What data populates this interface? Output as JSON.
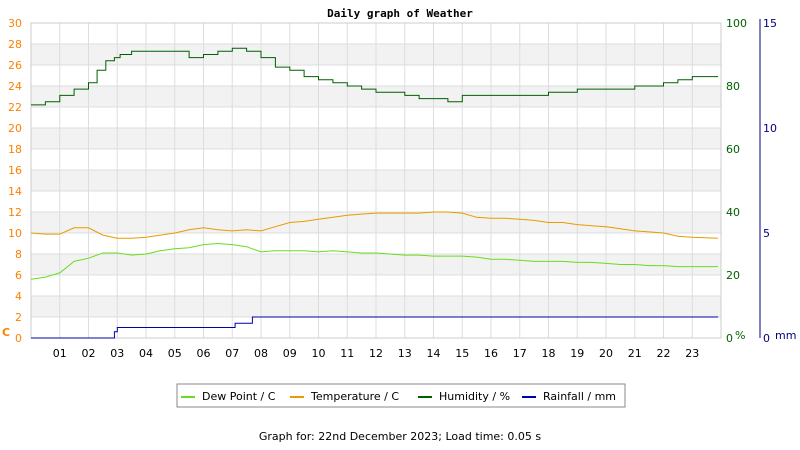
{
  "chart_data": {
    "type": "line",
    "title": "Daily graph of Weather",
    "footer": "Graph for: 22nd December 2023; Load time: 0.05 s",
    "x_ticks": [
      "01",
      "02",
      "03",
      "04",
      "05",
      "06",
      "07",
      "08",
      "09",
      "10",
      "11",
      "12",
      "13",
      "14",
      "15",
      "16",
      "17",
      "18",
      "19",
      "20",
      "21",
      "22",
      "23"
    ],
    "xlim": [
      0,
      24
    ],
    "axes": {
      "temperature": {
        "unit_label": "C",
        "ylim": [
          0,
          30
        ],
        "ticks": [
          0,
          2,
          4,
          6,
          8,
          10,
          12,
          14,
          16,
          18,
          20,
          22,
          24,
          26,
          28,
          30
        ],
        "color": "#ff8000",
        "side": "left"
      },
      "humidity": {
        "unit_label": "%",
        "ylim": [
          0,
          100
        ],
        "ticks": [
          0,
          20,
          40,
          60,
          80,
          100
        ],
        "color": "#006000",
        "side": "right"
      },
      "rainfall": {
        "unit_label": "mm",
        "ylim": [
          0,
          15
        ],
        "ticks": [
          0,
          5,
          10,
          15
        ],
        "color": "#000080",
        "side": "far-right"
      }
    },
    "legend_placement": "bottom",
    "series": [
      {
        "name": "Dew Point / C",
        "axis": "temperature",
        "color": "#66dd22",
        "x": [
          0,
          0.5,
          1,
          1.5,
          2,
          2.5,
          3,
          3.5,
          4,
          4.5,
          5,
          5.5,
          6,
          6.5,
          7,
          7.5,
          8,
          8.5,
          9,
          9.5,
          10,
          10.5,
          11,
          11.5,
          12,
          12.5,
          13,
          13.5,
          14,
          14.5,
          15,
          15.5,
          16,
          16.5,
          17,
          17.5,
          18,
          18.5,
          19,
          19.5,
          20,
          20.5,
          21,
          21.5,
          22,
          22.5,
          23,
          23.9
        ],
        "y": [
          5.6,
          5.8,
          6.2,
          7.3,
          7.6,
          8.1,
          8.1,
          7.9,
          8.0,
          8.3,
          8.5,
          8.6,
          8.9,
          9.0,
          8.9,
          8.7,
          8.2,
          8.3,
          8.3,
          8.3,
          8.2,
          8.3,
          8.2,
          8.1,
          8.1,
          8.0,
          7.9,
          7.9,
          7.8,
          7.8,
          7.8,
          7.7,
          7.5,
          7.5,
          7.4,
          7.3,
          7.3,
          7.3,
          7.2,
          7.2,
          7.1,
          7.0,
          7.0,
          6.9,
          6.9,
          6.8,
          6.8,
          6.8
        ]
      },
      {
        "name": "Temperature / C",
        "axis": "temperature",
        "color": "#e89a00",
        "x": [
          0,
          0.5,
          1,
          1.5,
          2,
          2.5,
          3,
          3.5,
          4,
          4.5,
          5,
          5.5,
          6,
          6.5,
          7,
          7.5,
          8,
          8.5,
          9,
          9.5,
          10,
          10.5,
          11,
          11.5,
          12,
          12.5,
          13,
          13.5,
          14,
          14.5,
          15,
          15.5,
          16,
          16.5,
          17,
          17.5,
          18,
          18.5,
          19,
          19.5,
          20,
          20.5,
          21,
          21.5,
          22,
          22.5,
          23,
          23.9
        ],
        "y": [
          10.0,
          9.9,
          9.9,
          10.5,
          10.5,
          9.8,
          9.5,
          9.5,
          9.6,
          9.8,
          10.0,
          10.3,
          10.5,
          10.3,
          10.2,
          10.3,
          10.2,
          10.6,
          11.0,
          11.1,
          11.3,
          11.5,
          11.7,
          11.8,
          11.9,
          11.9,
          11.9,
          11.9,
          12.0,
          12.0,
          11.9,
          11.5,
          11.4,
          11.4,
          11.3,
          11.2,
          11.0,
          11.0,
          10.8,
          10.7,
          10.6,
          10.4,
          10.2,
          10.1,
          10.0,
          9.7,
          9.6,
          9.5
        ]
      },
      {
        "name": "Humidity / %",
        "axis": "humidity",
        "color": "#006000",
        "x": [
          0,
          0.5,
          1,
          1.5,
          2,
          2.3,
          2.6,
          2.9,
          3.1,
          3.5,
          4,
          4.5,
          5,
          5.5,
          6,
          6.5,
          7,
          7.5,
          8,
          8.5,
          9,
          9.5,
          10,
          10.5,
          11,
          11.5,
          12,
          12.5,
          13,
          13.5,
          14,
          14.5,
          15,
          15.5,
          16,
          16.5,
          17,
          17.5,
          18,
          18.5,
          19,
          19.5,
          20,
          20.5,
          21,
          21.5,
          22,
          22.5,
          23,
          23.9
        ],
        "y": [
          74,
          75,
          77,
          79,
          81,
          85,
          88,
          89,
          90,
          91,
          91,
          91,
          91,
          89,
          90,
          91,
          92,
          91,
          89,
          86,
          85,
          83,
          82,
          81,
          80,
          79,
          78,
          78,
          77,
          76,
          76,
          75,
          77,
          77,
          77,
          77,
          77,
          77,
          78,
          78,
          79,
          79,
          79,
          79,
          80,
          80,
          81,
          82,
          83,
          83
        ]
      },
      {
        "name": "Rainfall / mm",
        "axis": "rainfall",
        "color": "#0000aa",
        "x": [
          0,
          1,
          2,
          2.8,
          2.9,
          3.0,
          3.5,
          4,
          5,
          6,
          7,
          7.1,
          7.6,
          7.7,
          8,
          9,
          10,
          12,
          14,
          16,
          18,
          20,
          22,
          23.9
        ],
        "y": [
          0,
          0,
          0,
          0,
          0.3,
          0.5,
          0.5,
          0.5,
          0.5,
          0.5,
          0.5,
          0.7,
          0.7,
          1.0,
          1.0,
          1.0,
          1.0,
          1.0,
          1.0,
          1.0,
          1.0,
          1.0,
          1.0,
          1.0
        ]
      }
    ]
  }
}
